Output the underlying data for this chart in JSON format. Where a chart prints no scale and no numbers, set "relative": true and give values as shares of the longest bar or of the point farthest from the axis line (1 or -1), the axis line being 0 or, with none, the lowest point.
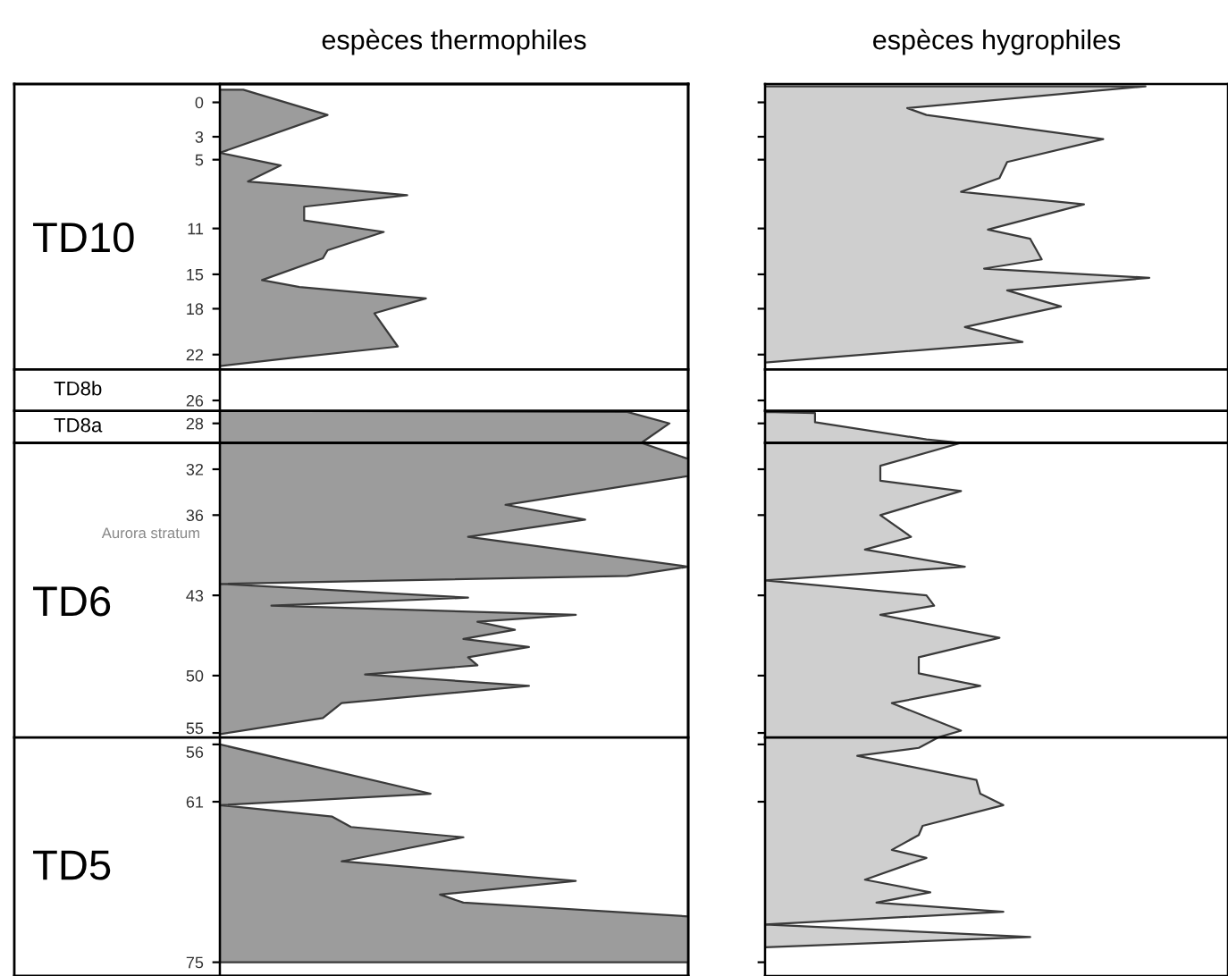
{
  "chart_data": [
    {
      "type": "area",
      "orientation": "horizontal",
      "relative": true,
      "title": "espèces thermophiles",
      "ylim": [
        76.2,
        -1.6
      ],
      "yticks": [
        0,
        3,
        5,
        11,
        15,
        18,
        22,
        26,
        28,
        32,
        36,
        43,
        50,
        55,
        56,
        61,
        75
      ],
      "series": [
        {
          "color": "#9c9c9c",
          "x": [
            -1.1,
            1.1,
            4.4,
            5.5,
            6.9,
            7.4,
            8.1,
            9.1,
            10.3,
            11.3,
            12.9,
            13.6,
            15.5,
            16.1,
            17.1,
            18.4,
            21.3,
            22.3,
            23.0,
            26.9,
            27.0,
            28,
            29.7,
            31.1,
            32.6,
            35.1,
            36.4,
            37.9,
            40.5,
            41.3,
            42.0,
            43.2,
            43.9,
            44.7,
            45.3,
            46.0,
            46.8,
            47.5,
            48.4,
            49.1,
            49.9,
            50.9,
            52.4,
            53.7,
            55.1,
            56,
            60.3,
            61.3,
            62.3,
            63.2,
            64.1,
            66.2,
            67.9,
            69.1,
            69.8,
            71.0,
            75
          ],
          "values": [
            0.05,
            0.23,
            0.0,
            0.13,
            0.06,
            0.21,
            0.4,
            0.18,
            0.18,
            0.35,
            0.23,
            0.22,
            0.09,
            0.17,
            0.44,
            0.33,
            0.38,
            0.15,
            0.0,
            0.0,
            0.87,
            0.96,
            0.9,
            1.0,
            1.0,
            0.61,
            0.78,
            0.53,
            1.0,
            0.87,
            0.0,
            0.53,
            0.11,
            0.76,
            0.55,
            0.63,
            0.52,
            0.66,
            0.53,
            0.55,
            0.31,
            0.66,
            0.26,
            0.22,
            0.0,
            0.0,
            0.45,
            0.0,
            0.24,
            0.28,
            0.52,
            0.26,
            0.76,
            0.47,
            0.52,
            1.0,
            1.0
          ]
        }
      ],
      "ref_lines": [
        {
          "axis": "y",
          "value": 23.3
        },
        {
          "axis": "y",
          "value": 26.9
        },
        {
          "axis": "y",
          "value": 29.7
        },
        {
          "axis": "y",
          "value": 55.4
        }
      ],
      "annotations": [
        "TD10",
        "TD8b",
        "TD8a",
        "TD6",
        "TD5",
        "Aurora stratum"
      ]
    },
    {
      "type": "area",
      "orientation": "horizontal",
      "relative": true,
      "title": "espèces hygrophiles",
      "ylim": [
        76.2,
        -1.6
      ],
      "tick_labels": false,
      "yticks": [
        0,
        3,
        5,
        11,
        15,
        18,
        22,
        26,
        28,
        32,
        36,
        43,
        50,
        55,
        56,
        61,
        75
      ],
      "series": [
        {
          "color": "#cfcfcf",
          "x": [
            -1.4,
            0.5,
            1.1,
            3.2,
            5.2,
            6.6,
            7.8,
            8.9,
            11.1,
            11.9,
            13.7,
            14.5,
            15.3,
            16.4,
            17.8,
            19.6,
            20.9,
            22.7,
            27.0,
            27.1,
            27.9,
            29.4,
            29.7,
            31.7,
            33.0,
            33.9,
            36,
            37.9,
            39.0,
            40.5,
            41.7,
            43,
            43.9,
            44.7,
            46.7,
            48.4,
            49.8,
            50.9,
            52.4,
            54.8,
            55.4,
            56.3,
            57.0,
            59.1,
            60.3,
            61.3,
            63.1,
            63.9,
            65.2,
            65.9,
            67.8,
            68.9,
            69.8,
            70.6,
            71.7,
            72.8,
            73.7
          ],
          "values": [
            0.99,
            0.37,
            0.42,
            0.88,
            0.63,
            0.61,
            0.51,
            0.83,
            0.58,
            0.69,
            0.72,
            0.57,
            1.0,
            0.63,
            0.77,
            0.52,
            0.67,
            0.0,
            0.0,
            0.13,
            0.13,
            0.42,
            0.51,
            0.3,
            0.3,
            0.51,
            0.3,
            0.38,
            0.26,
            0.52,
            0.0,
            0.42,
            0.44,
            0.3,
            0.61,
            0.4,
            0.4,
            0.56,
            0.33,
            0.51,
            0.45,
            0.4,
            0.24,
            0.55,
            0.56,
            0.62,
            0.41,
            0.4,
            0.33,
            0.42,
            0.26,
            0.43,
            0.29,
            0.62,
            0.0,
            0.69,
            0.0
          ]
        }
      ],
      "ref_lines": [
        {
          "axis": "y",
          "value": 23.3
        },
        {
          "axis": "y",
          "value": 26.9
        },
        {
          "axis": "y",
          "value": 29.7
        },
        {
          "axis": "y",
          "value": 55.4
        }
      ]
    }
  ]
}
